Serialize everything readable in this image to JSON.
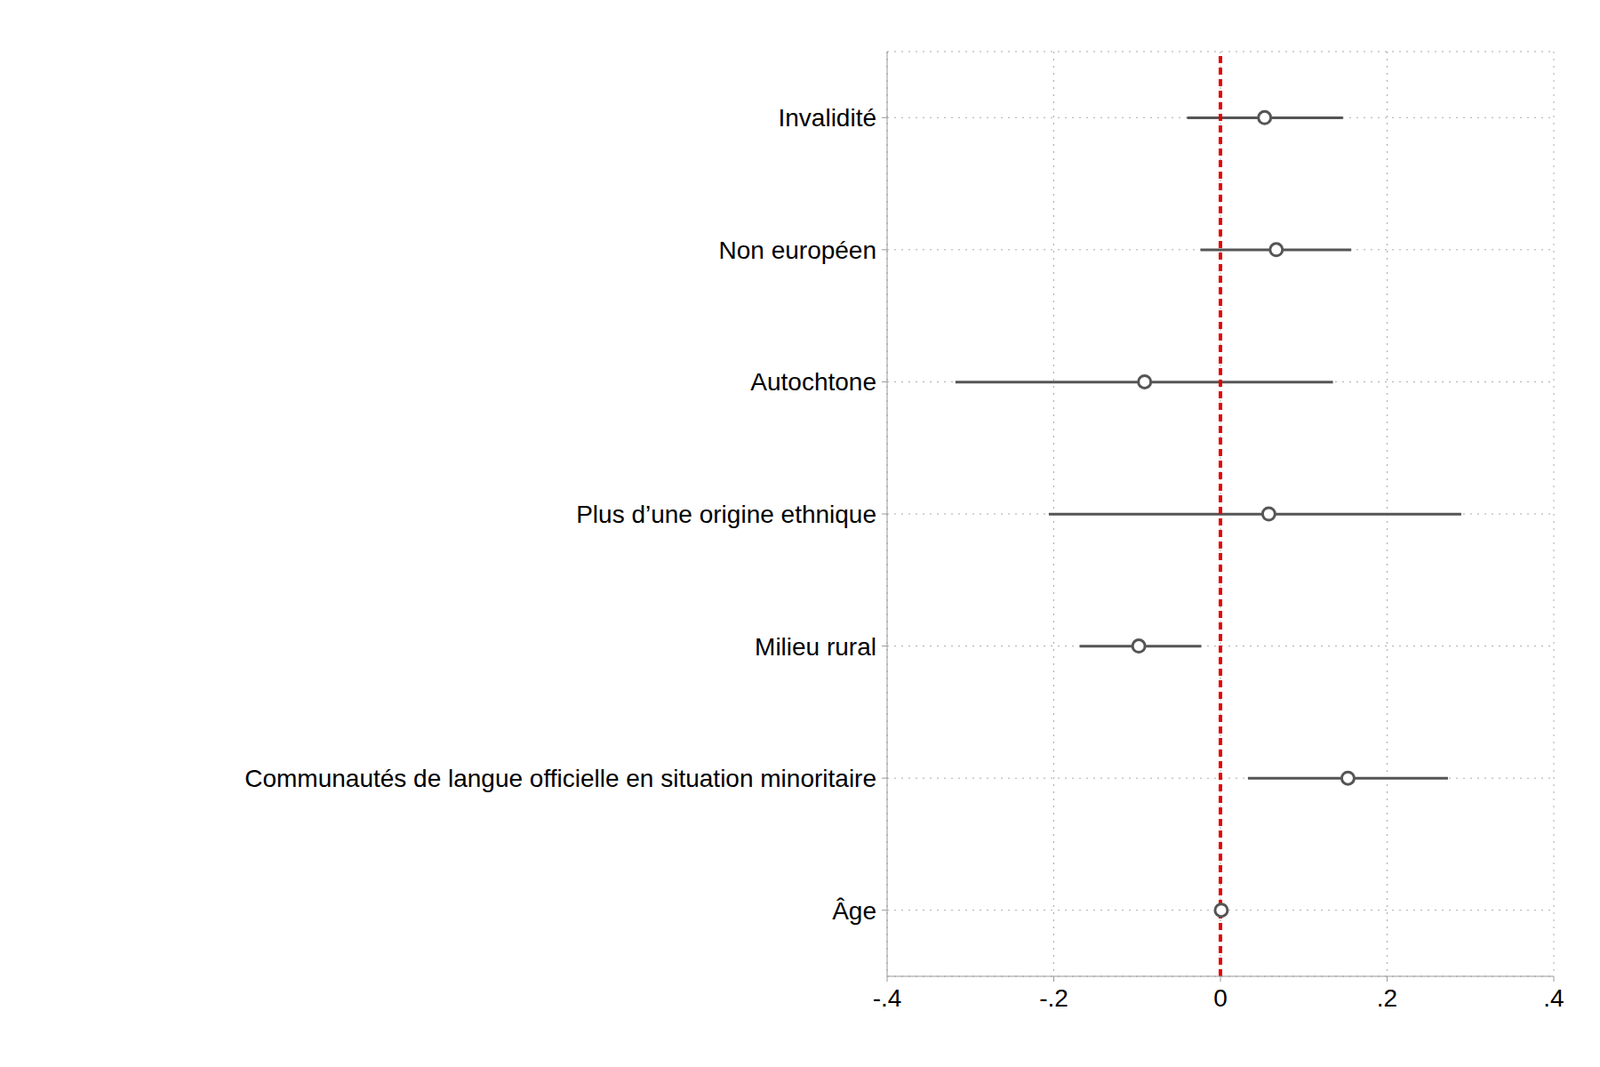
{
  "chart_data": {
    "type": "coefficient",
    "orientation": "horizontal",
    "categories": [
      "Invalidité",
      "Non européen",
      "Autochtone",
      "Plus d’une origine ethnique",
      "Milieu rural",
      "Communautés de langue officielle en situation minoritaire",
      "Âge"
    ],
    "values": [
      0.053,
      0.067,
      -0.091,
      0.058,
      -0.098,
      0.153,
      0.001
    ],
    "lower": [
      -0.04,
      -0.024,
      -0.318,
      -0.206,
      -0.169,
      0.033,
      0
    ],
    "upper": [
      0.147,
      0.157,
      0.135,
      0.289,
      -0.023,
      0.273,
      0.002
    ],
    "reference_x": 0,
    "xlim": [
      -0.4,
      0.4
    ],
    "xticks": [
      {
        "value": -0.4,
        "label": "-.4"
      },
      {
        "value": -0.2,
        "label": "-.2"
      },
      0,
      {
        "value": 0.2,
        "label": ".2"
      },
      {
        "value": 0.4,
        "label": ".4"
      }
    ],
    "grid": true,
    "color": "#555555",
    "marker": "circle"
  }
}
